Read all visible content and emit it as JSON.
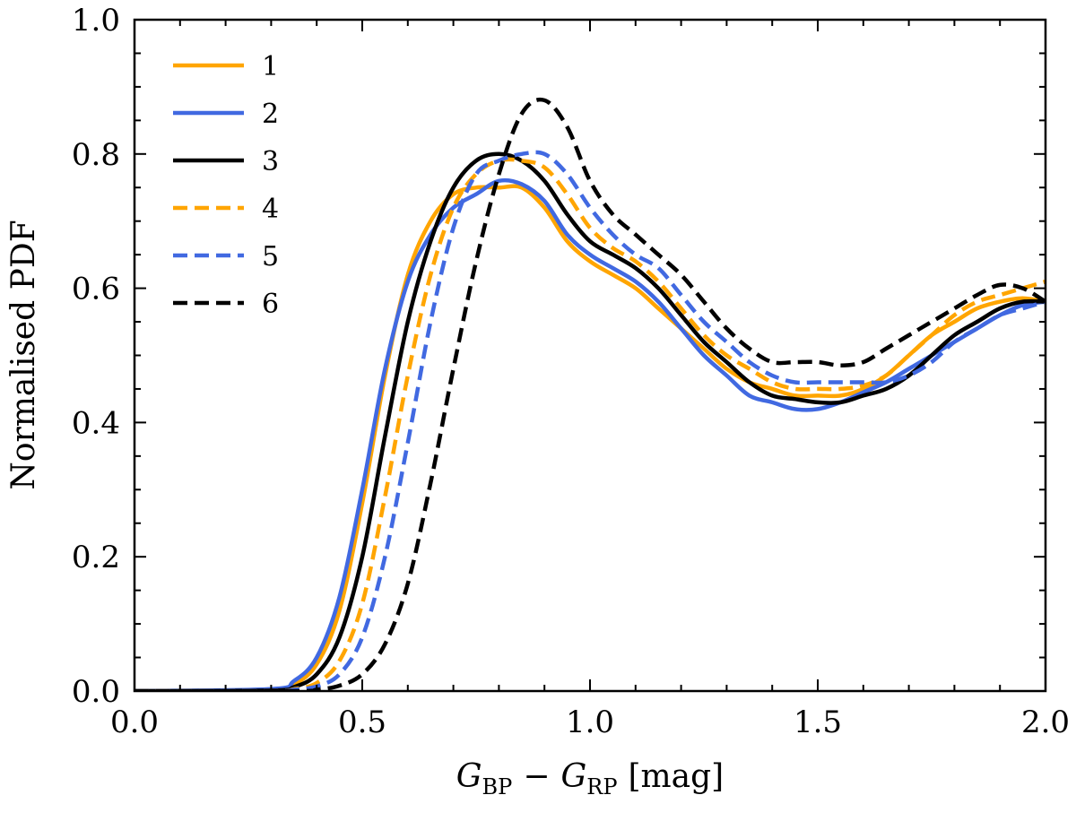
{
  "chart_data": {
    "type": "line",
    "title": "",
    "xlabel": "G_BP − G_RP [mag]",
    "xlabel_parts": {
      "g1": "G",
      "sub1": "BP",
      "minus": "−",
      "g2": "G",
      "sub2": "RP",
      "unit": "[mag]"
    },
    "ylabel": "Normalised PDF",
    "xlim": [
      0.0,
      2.0
    ],
    "ylim": [
      0.0,
      1.0
    ],
    "xticks": [
      0.0,
      0.5,
      1.0,
      1.5,
      2.0
    ],
    "xtick_labels": [
      "0.0",
      "0.5",
      "1.0",
      "1.5",
      "2.0"
    ],
    "yticks": [
      0.0,
      0.2,
      0.4,
      0.6,
      0.8,
      1.0
    ],
    "ytick_labels": [
      "0.0",
      "0.2",
      "0.4",
      "0.6",
      "0.8",
      "1.0"
    ],
    "grid": false,
    "legend_position": "top-left",
    "series": [
      {
        "name": "1",
        "color": "#FFA500",
        "style": "solid",
        "x": [
          0.0,
          0.3,
          0.35,
          0.4,
          0.45,
          0.5,
          0.55,
          0.6,
          0.65,
          0.7,
          0.75,
          0.8,
          0.85,
          0.9,
          0.95,
          1.0,
          1.05,
          1.1,
          1.15,
          1.2,
          1.25,
          1.3,
          1.35,
          1.4,
          1.45,
          1.5,
          1.55,
          1.6,
          1.65,
          1.7,
          1.75,
          1.8,
          1.85,
          1.9,
          1.95,
          2.0
        ],
        "y": [
          0.0,
          0.002,
          0.01,
          0.04,
          0.12,
          0.28,
          0.47,
          0.62,
          0.7,
          0.74,
          0.75,
          0.75,
          0.75,
          0.72,
          0.67,
          0.64,
          0.62,
          0.6,
          0.57,
          0.54,
          0.51,
          0.48,
          0.46,
          0.45,
          0.44,
          0.44,
          0.44,
          0.45,
          0.47,
          0.5,
          0.53,
          0.55,
          0.57,
          0.58,
          0.585,
          0.58
        ]
      },
      {
        "name": "2",
        "color": "#4169E1",
        "style": "solid",
        "x": [
          0.0,
          0.3,
          0.35,
          0.4,
          0.45,
          0.5,
          0.55,
          0.6,
          0.65,
          0.7,
          0.75,
          0.8,
          0.85,
          0.9,
          0.95,
          1.0,
          1.05,
          1.1,
          1.15,
          1.2,
          1.25,
          1.3,
          1.35,
          1.4,
          1.45,
          1.5,
          1.55,
          1.6,
          1.65,
          1.7,
          1.75,
          1.8,
          1.85,
          1.9,
          1.95,
          2.0
        ],
        "y": [
          0.0,
          0.003,
          0.015,
          0.05,
          0.14,
          0.3,
          0.48,
          0.61,
          0.68,
          0.72,
          0.74,
          0.76,
          0.755,
          0.73,
          0.68,
          0.65,
          0.63,
          0.61,
          0.58,
          0.54,
          0.5,
          0.47,
          0.44,
          0.43,
          0.42,
          0.42,
          0.43,
          0.445,
          0.46,
          0.48,
          0.5,
          0.52,
          0.54,
          0.56,
          0.575,
          0.58
        ]
      },
      {
        "name": "3",
        "color": "#000000",
        "style": "solid",
        "x": [
          0.0,
          0.3,
          0.35,
          0.4,
          0.45,
          0.5,
          0.55,
          0.6,
          0.65,
          0.7,
          0.75,
          0.8,
          0.85,
          0.9,
          0.95,
          1.0,
          1.05,
          1.1,
          1.15,
          1.2,
          1.25,
          1.3,
          1.35,
          1.4,
          1.45,
          1.5,
          1.55,
          1.6,
          1.65,
          1.7,
          1.75,
          1.8,
          1.85,
          1.9,
          1.95,
          2.0
        ],
        "y": [
          0.0,
          0.001,
          0.006,
          0.025,
          0.08,
          0.2,
          0.38,
          0.55,
          0.67,
          0.75,
          0.79,
          0.8,
          0.79,
          0.76,
          0.71,
          0.67,
          0.65,
          0.63,
          0.6,
          0.56,
          0.52,
          0.49,
          0.46,
          0.44,
          0.435,
          0.43,
          0.43,
          0.44,
          0.45,
          0.47,
          0.5,
          0.53,
          0.55,
          0.57,
          0.58,
          0.58
        ]
      },
      {
        "name": "4",
        "color": "#FFA500",
        "style": "dashed",
        "x": [
          0.0,
          0.3,
          0.35,
          0.4,
          0.45,
          0.5,
          0.55,
          0.6,
          0.65,
          0.7,
          0.75,
          0.8,
          0.85,
          0.9,
          0.95,
          1.0,
          1.05,
          1.1,
          1.15,
          1.2,
          1.25,
          1.3,
          1.35,
          1.4,
          1.45,
          1.5,
          1.55,
          1.6,
          1.65,
          1.7,
          1.75,
          1.8,
          1.85,
          1.9,
          1.95,
          2.0
        ],
        "y": [
          0.0,
          0.0,
          0.003,
          0.012,
          0.045,
          0.13,
          0.29,
          0.47,
          0.62,
          0.72,
          0.77,
          0.79,
          0.79,
          0.78,
          0.74,
          0.69,
          0.66,
          0.64,
          0.61,
          0.57,
          0.53,
          0.5,
          0.48,
          0.46,
          0.45,
          0.45,
          0.45,
          0.455,
          0.47,
          0.5,
          0.53,
          0.56,
          0.58,
          0.59,
          0.6,
          0.61
        ]
      },
      {
        "name": "5",
        "color": "#4169E1",
        "style": "dashed",
        "x": [
          0.0,
          0.3,
          0.35,
          0.4,
          0.45,
          0.5,
          0.55,
          0.6,
          0.65,
          0.7,
          0.75,
          0.8,
          0.85,
          0.9,
          0.95,
          1.0,
          1.05,
          1.1,
          1.15,
          1.2,
          1.25,
          1.3,
          1.35,
          1.4,
          1.45,
          1.5,
          1.55,
          1.6,
          1.65,
          1.7,
          1.75,
          1.8,
          1.85,
          1.9,
          1.95,
          2.0
        ],
        "y": [
          0.0,
          0.0,
          0.002,
          0.007,
          0.025,
          0.08,
          0.2,
          0.37,
          0.55,
          0.69,
          0.77,
          0.79,
          0.8,
          0.8,
          0.77,
          0.72,
          0.68,
          0.65,
          0.63,
          0.59,
          0.55,
          0.52,
          0.49,
          0.47,
          0.46,
          0.46,
          0.46,
          0.46,
          0.46,
          0.47,
          0.49,
          0.52,
          0.54,
          0.56,
          0.57,
          0.58
        ]
      },
      {
        "name": "6",
        "color": "#000000",
        "style": "dashed",
        "x": [
          0.0,
          0.35,
          0.4,
          0.45,
          0.5,
          0.55,
          0.6,
          0.65,
          0.7,
          0.75,
          0.8,
          0.85,
          0.9,
          0.95,
          1.0,
          1.05,
          1.1,
          1.15,
          1.2,
          1.25,
          1.3,
          1.35,
          1.4,
          1.45,
          1.5,
          1.55,
          1.6,
          1.65,
          1.7,
          1.75,
          1.8,
          1.85,
          1.9,
          1.95,
          2.0
        ],
        "y": [
          0.0,
          0.0,
          0.002,
          0.008,
          0.025,
          0.07,
          0.16,
          0.31,
          0.48,
          0.64,
          0.77,
          0.86,
          0.88,
          0.84,
          0.76,
          0.71,
          0.68,
          0.65,
          0.62,
          0.58,
          0.54,
          0.51,
          0.49,
          0.49,
          0.49,
          0.485,
          0.49,
          0.51,
          0.53,
          0.55,
          0.57,
          0.59,
          0.605,
          0.6,
          0.58
        ]
      }
    ]
  }
}
